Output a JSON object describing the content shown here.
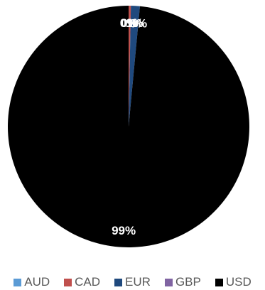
{
  "chart_data": {
    "type": "pie",
    "categories": [
      "AUD",
      "CAD",
      "EUR",
      "GBP",
      "USD"
    ],
    "values": [
      0,
      0.3,
      1.2,
      0,
      98.5
    ],
    "colors": [
      "#5b9bd5",
      "#c0504d",
      "#1f497d",
      "#8064a2",
      "#000000"
    ],
    "data_labels": [
      "0%",
      "0%",
      "1%",
      "0%",
      "99%"
    ],
    "legend_position": "bottom"
  }
}
